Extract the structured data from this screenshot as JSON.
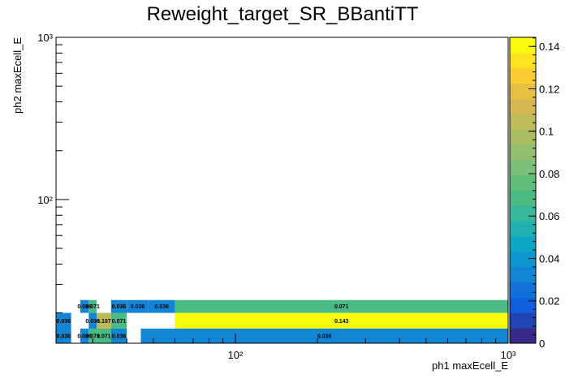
{
  "chart_data": {
    "type": "heatmap",
    "title": "Reweight_target_SR_BBantiTT",
    "xlabel": "ph1 maxEcell_E",
    "ylabel": "ph2 maxEcell_E",
    "x_scale": "log",
    "y_scale": "log",
    "xlim": [
      22,
      1000
    ],
    "ylim": [
      13,
      1000
    ],
    "x_tick_labels": [
      "10²",
      "10³"
    ],
    "y_tick_labels": [
      "10²",
      "10³"
    ],
    "colorbar": {
      "range": [
        0,
        0.1443
      ],
      "tick_labels": [
        "0",
        "0.02",
        "0.04",
        "0.06",
        "0.08",
        "0.1",
        "0.12",
        "0.14"
      ],
      "tick_values": [
        0,
        0.02,
        0.04,
        0.06,
        0.08,
        0.1,
        0.12,
        0.14
      ]
    },
    "cells": [
      {
        "x": [
          22,
          25
        ],
        "y": [
          13,
          16
        ],
        "value": 0.036,
        "label": "0.036"
      },
      {
        "x": [
          27,
          29
        ],
        "y": [
          13,
          16
        ],
        "value": 0.036,
        "label": "0.036"
      },
      {
        "x": [
          29,
          31
        ],
        "y": [
          13,
          16
        ],
        "value": 0.071,
        "label": "0.071"
      },
      {
        "x": [
          31,
          35
        ],
        "y": [
          13,
          16
        ],
        "value": 0.071,
        "label": "0.071"
      },
      {
        "x": [
          35,
          40
        ],
        "y": [
          13,
          16
        ],
        "value": 0.036,
        "label": "0.036"
      },
      {
        "x": [
          45,
          1000
        ],
        "y": [
          13,
          16
        ],
        "value": 0.036,
        "label": "0.036"
      },
      {
        "x": [
          22,
          25
        ],
        "y": [
          16,
          20
        ],
        "value": 0.036,
        "label": "0.036"
      },
      {
        "x": [
          29,
          31
        ],
        "y": [
          16,
          20
        ],
        "value": 0.036,
        "label": "0.036"
      },
      {
        "x": [
          31,
          35
        ],
        "y": [
          16,
          20
        ],
        "value": 0.107,
        "label": "0.107"
      },
      {
        "x": [
          35,
          40
        ],
        "y": [
          16,
          20
        ],
        "value": 0.071,
        "label": "0.071"
      },
      {
        "x": [
          60,
          1000
        ],
        "y": [
          16,
          20
        ],
        "value": 0.143,
        "label": "0.143"
      },
      {
        "x": [
          27,
          29
        ],
        "y": [
          20,
          24
        ],
        "value": 0.036,
        "label": "0.036"
      },
      {
        "x": [
          29,
          31
        ],
        "y": [
          20,
          24
        ],
        "value": 0.071,
        "label": "0.071"
      },
      {
        "x": [
          35,
          40
        ],
        "y": [
          20,
          24
        ],
        "value": 0.036,
        "label": "0.036"
      },
      {
        "x": [
          40,
          48
        ],
        "y": [
          20,
          24
        ],
        "value": 0.036,
        "label": "0.036"
      },
      {
        "x": [
          48,
          60
        ],
        "y": [
          20,
          24
        ],
        "value": 0.036,
        "label": "0.036"
      },
      {
        "x": [
          60,
          1000
        ],
        "y": [
          20,
          24
        ],
        "value": 0.071,
        "label": "0.071"
      }
    ]
  }
}
